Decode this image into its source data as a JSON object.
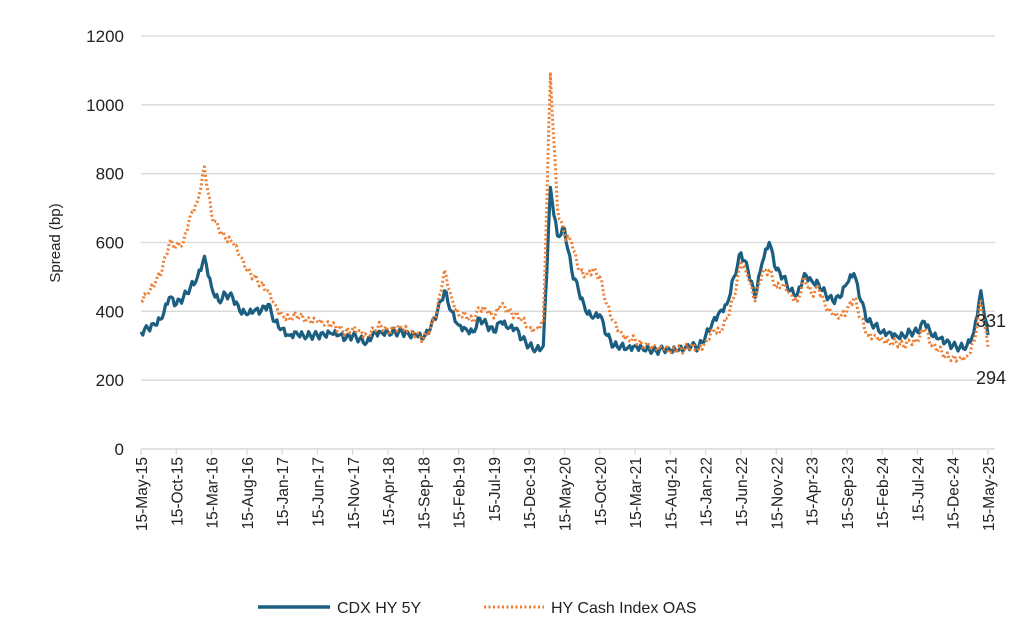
{
  "chart_data": {
    "type": "line",
    "title": "",
    "xlabel": "",
    "ylabel": "Spread (bp)",
    "ylim": [
      0,
      1200
    ],
    "yticks": [
      0,
      200,
      400,
      600,
      800,
      1000,
      1200
    ],
    "grid": true,
    "legend_position": "bottom",
    "x_start": "2015-05",
    "x_end": "2025-05",
    "xtick_labels": [
      "15-May-15",
      "15-Oct-15",
      "15-Mar-16",
      "15-Aug-16",
      "15-Jan-17",
      "15-Jun-17",
      "15-Nov-17",
      "15-Apr-18",
      "15-Sep-18",
      "15-Feb-19",
      "15-Jul-19",
      "15-Dec-19",
      "15-May-20",
      "15-Oct-20",
      "15-Mar-21",
      "15-Aug-21",
      "15-Jan-22",
      "15-Jun-22",
      "15-Nov-22",
      "15-Apr-23",
      "15-Sep-23",
      "15-Feb-24",
      "15-Jul-24",
      "15-Dec-24",
      "15-May-25"
    ],
    "series": [
      {
        "name": "CDX HY 5Y",
        "color": "#1B5E80",
        "style": "solid",
        "end_label": "331",
        "values": [
          340,
          350,
          360,
          380,
          440,
          420,
          440,
          470,
          500,
          560,
          470,
          430,
          450,
          440,
          400,
          390,
          400,
          400,
          420,
          370,
          350,
          330,
          340,
          330,
          330,
          330,
          330,
          335,
          330,
          320,
          330,
          320,
          310,
          340,
          340,
          340,
          340,
          340,
          330,
          330,
          320,
          350,
          400,
          460,
          400,
          360,
          350,
          340,
          380,
          360,
          340,
          370,
          350,
          350,
          320,
          300,
          290,
          300,
          760,
          620,
          640,
          520,
          460,
          400,
          380,
          390,
          330,
          300,
          300,
          295,
          300,
          295,
          290,
          285,
          290,
          285,
          285,
          290,
          300,
          295,
          330,
          370,
          400,
          420,
          500,
          570,
          520,
          440,
          540,
          600,
          520,
          500,
          460,
          450,
          510,
          490,
          480,
          450,
          430,
          440,
          480,
          510,
          430,
          370,
          360,
          340,
          340,
          330,
          330,
          340,
          340,
          370,
          330,
          320,
          310,
          300,
          295,
          300,
          340,
          460,
          331
        ]
      },
      {
        "name": "HY Cash Index OAS",
        "color": "#ED7D31",
        "style": "dotted",
        "end_label": "294",
        "values": [
          430,
          450,
          480,
          520,
          600,
          590,
          600,
          680,
          720,
          820,
          680,
          640,
          610,
          600,
          560,
          520,
          500,
          480,
          460,
          420,
          390,
          380,
          390,
          380,
          370,
          370,
          360,
          360,
          350,
          340,
          350,
          345,
          330,
          350,
          360,
          340,
          350,
          350,
          340,
          330,
          320,
          350,
          410,
          520,
          440,
          390,
          390,
          370,
          410,
          400,
          380,
          420,
          400,
          390,
          380,
          350,
          350,
          370,
          1090,
          700,
          620,
          600,
          520,
          500,
          520,
          500,
          420,
          370,
          340,
          320,
          320,
          300,
          300,
          290,
          290,
          280,
          290,
          290,
          300,
          290,
          310,
          350,
          340,
          380,
          440,
          540,
          500,
          430,
          510,
          520,
          470,
          480,
          450,
          430,
          500,
          450,
          470,
          410,
          390,
          380,
          400,
          440,
          380,
          330,
          330,
          320,
          310,
          310,
          300,
          310,
          310,
          350,
          300,
          290,
          270,
          265,
          265,
          270,
          310,
          430,
          294
        ]
      }
    ]
  }
}
